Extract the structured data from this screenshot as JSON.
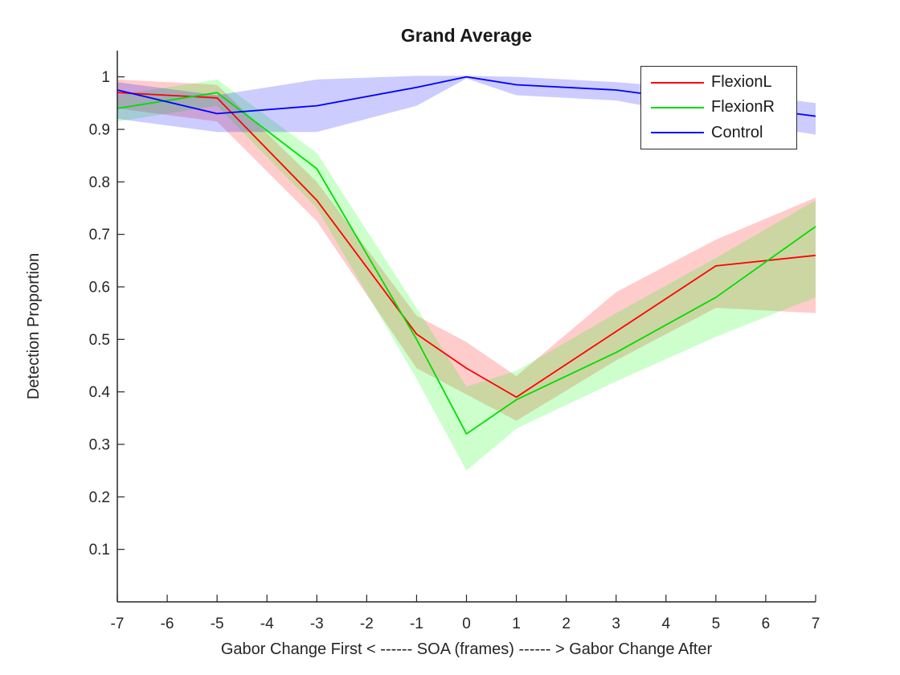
{
  "chart_data": {
    "type": "line",
    "title": "Grand Average",
    "xlabel": "Gabor Change First < ------ SOA (frames) ------ > Gabor Change After",
    "ylabel": "Detection Proportion",
    "xlim": [
      -7,
      7
    ],
    "ylim": [
      0,
      1.05
    ],
    "grid": false,
    "band_opacity": 0.2,
    "axis_color": "#262626",
    "xticks": [
      -7,
      -6,
      -5,
      -4,
      -3,
      -2,
      -1,
      0,
      1,
      2,
      3,
      4,
      5,
      6,
      7
    ],
    "xtick_labels": [
      "-7",
      "-6",
      "-5",
      "-4",
      "-3",
      "-2",
      "-1",
      "0",
      "1",
      "2",
      "3",
      "4",
      "5",
      "6",
      "7"
    ],
    "yticks": [
      0.1,
      0.2,
      0.3,
      0.4,
      0.5,
      0.6,
      0.7,
      0.8,
      0.9,
      1.0
    ],
    "ytick_labels": [
      "0.1",
      "0.2",
      "0.3",
      "0.4",
      "0.5",
      "0.6",
      "0.7",
      "0.8",
      "0.9",
      "1"
    ],
    "x": [
      -7,
      -5,
      -3,
      -1,
      0,
      1,
      3,
      5,
      7
    ],
    "series": [
      {
        "name": "FlexionL",
        "color": "#ff0000",
        "values": [
          0.97,
          0.96,
          0.765,
          0.51,
          0.445,
          0.39,
          0.515,
          0.64,
          0.66
        ],
        "band_lower": [
          0.94,
          0.915,
          0.725,
          0.445,
          0.395,
          0.345,
          0.46,
          0.56,
          0.55
        ],
        "band_upper": [
          0.995,
          0.985,
          0.8,
          0.545,
          0.495,
          0.43,
          0.59,
          0.69,
          0.77
        ]
      },
      {
        "name": "FlexionR",
        "color": "#00dd00",
        "band_color": "#00ff00",
        "values": [
          0.94,
          0.97,
          0.825,
          0.5,
          0.32,
          0.385,
          0.475,
          0.58,
          0.715
        ],
        "band_lower": [
          0.915,
          0.945,
          0.75,
          0.425,
          0.25,
          0.33,
          0.42,
          0.505,
          0.58
        ],
        "band_upper": [
          0.965,
          0.995,
          0.855,
          0.56,
          0.41,
          0.44,
          0.55,
          0.655,
          0.765
        ]
      },
      {
        "name": "Control",
        "color": "#0000ff",
        "values": [
          0.975,
          0.93,
          0.945,
          0.98,
          1.0,
          0.985,
          0.975,
          0.95,
          0.925
        ],
        "band_lower": [
          0.92,
          0.895,
          0.895,
          0.945,
          0.997,
          0.965,
          0.955,
          0.92,
          0.89
        ],
        "band_upper": [
          0.99,
          0.965,
          0.995,
          1.002,
          1.002,
          1.0,
          0.99,
          0.975,
          0.95
        ]
      }
    ],
    "legend": {
      "position": "top-right",
      "entries": [
        {
          "label": "FlexionL"
        },
        {
          "label": "FlexionR"
        },
        {
          "label": "Control"
        }
      ]
    }
  }
}
